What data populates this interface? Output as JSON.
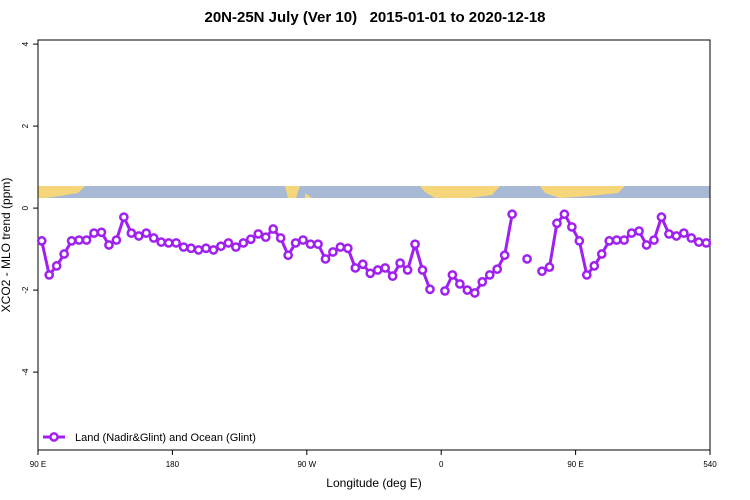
{
  "chart_data": {
    "type": "line",
    "title": "20N-25N July (Ver 10)   2015-01-01 to 2020-12-18",
    "xlabel": "Longitude (deg E)",
    "ylabel": "XCO2 - MLO trend (ppm)",
    "x": [
      92.5,
      97.5,
      102.5,
      107.5,
      112.5,
      117.5,
      122.5,
      127.5,
      132.5,
      137.5,
      142.5,
      147.5,
      152.5,
      157.5,
      162.5,
      167.5,
      172.5,
      177.5,
      182.5,
      187.5,
      192.5,
      197.5,
      202.5,
      207.5,
      212.5,
      217.5,
      222.5,
      227.5,
      232.5,
      237.5,
      242.5,
      247.5,
      252.5,
      257.5,
      262.5,
      267.5,
      272.5,
      277.5,
      282.5,
      287.5,
      292.5,
      297.5,
      302.5,
      307.5,
      312.5,
      317.5,
      322.5,
      327.5,
      332.5,
      337.5,
      342.5,
      347.5,
      352.5,
      357.5,
      362.5,
      367.5,
      372.5,
      377.5,
      382.5,
      387.5,
      392.5,
      397.5,
      402.5,
      407.5,
      412.5,
      417.5,
      422.5,
      427.5,
      432.5,
      437.5,
      442.5,
      447.5,
      452.5,
      457.5,
      462.5,
      467.5,
      472.5,
      477.5,
      482.5,
      487.5,
      492.5,
      497.5,
      502.5,
      507.5,
      512.5,
      517.5,
      522.5,
      527.5,
      532.5,
      537.5
    ],
    "series": [
      {
        "name": "Land (Nadir&Glint) and Ocean (Glint)",
        "color": "#a020f0",
        "values": [
          -0.8,
          -1.63,
          -1.41,
          -1.12,
          -0.8,
          -0.78,
          -0.78,
          -0.61,
          -0.59,
          -0.9,
          -0.78,
          -0.22,
          -0.61,
          -0.68,
          -0.61,
          -0.73,
          -0.83,
          -0.85,
          -0.85,
          -0.95,
          -0.98,
          -1.02,
          -0.98,
          -1.02,
          -0.93,
          -0.85,
          -0.95,
          -0.85,
          -0.76,
          -0.63,
          -0.71,
          -0.51,
          -0.73,
          -1.15,
          -0.85,
          -0.78,
          -0.88,
          -0.88,
          -1.24,
          -1.07,
          -0.95,
          -0.98,
          -1.46,
          -1.37,
          -1.59,
          -1.51,
          -1.46,
          -1.66,
          -1.34,
          -1.51,
          -0.88,
          -1.51,
          -1.98,
          null,
          -2.02,
          -1.63,
          -1.85,
          -2.0,
          -2.07,
          -1.8,
          -1.63,
          -1.49,
          -1.15,
          -0.15,
          null,
          -1.24,
          null,
          -1.54,
          -1.44,
          -0.37,
          -0.15,
          -0.46,
          -0.8,
          -1.63,
          -1.41,
          -1.12,
          -0.8,
          -0.78,
          -0.78,
          -0.61,
          -0.56,
          -0.9,
          -0.78,
          -0.22,
          -0.63,
          -0.68,
          -0.61,
          -0.73,
          -0.83,
          -0.85
        ]
      }
    ],
    "xlim": [
      90,
      540
    ],
    "ylim": [
      -5.9,
      4.1
    ],
    "xticks": [
      {
        "value": 90,
        "label": "90 E"
      },
      180,
      {
        "value": 270,
        "label": "90 W"
      },
      {
        "value": 360,
        "label": "0"
      },
      {
        "value": 450,
        "label": "90 E"
      },
      540
    ],
    "yticks": [
      -4,
      -2,
      0,
      2,
      4
    ],
    "legend": "bottom-left"
  }
}
